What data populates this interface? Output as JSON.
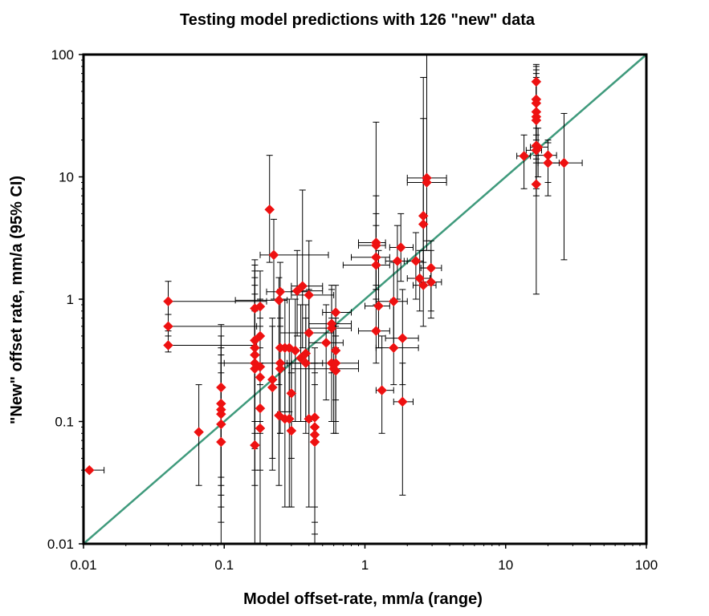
{
  "chart_data": {
    "type": "scatter",
    "title": "Testing model predictions with 126 \"new\" data",
    "xlabel": "Model offset-rate, mm/a (range)",
    "ylabel": "\"New\" offset rate, mm/a (95% CI)",
    "xscale": "log",
    "yscale": "log",
    "xlim": [
      0.01,
      100
    ],
    "ylim": [
      0.01,
      100
    ],
    "x_ticks": [
      0.01,
      0.1,
      1,
      10,
      100
    ],
    "x_tick_labels": [
      "0.01",
      "0.1",
      "1",
      "10",
      "100"
    ],
    "y_ticks": [
      0.01,
      0.1,
      1,
      10,
      100
    ],
    "y_tick_labels": [
      "0.01",
      "0.1",
      "1",
      "10",
      "100"
    ],
    "grid": false,
    "legend": "none",
    "reference_line": {
      "type": "1:1",
      "from": [
        0.01,
        0.01
      ],
      "to": [
        100,
        100
      ],
      "color": "#3f9a7c"
    },
    "marker": {
      "shape": "diamond",
      "color": "#ee1111"
    },
    "errorbar_color": "#000000",
    "frame_color": "#000000",
    "points": [
      {
        "x": 0.04,
        "y": 0.96,
        "xlo": 0.04,
        "xhi": 0.2,
        "ylo": 0.6,
        "yhi": 1.4
      },
      {
        "x": 0.04,
        "y": 0.6,
        "xlo": 0.04,
        "xhi": 0.17,
        "ylo": 0.5,
        "yhi": 0.75
      },
      {
        "x": 0.04,
        "y": 0.42,
        "xlo": 0.04,
        "xhi": 0.17,
        "ylo": 0.37,
        "yhi": 0.55
      },
      {
        "x": 0.066,
        "y": 0.082,
        "ylo": 0.03,
        "yhi": 0.2
      },
      {
        "x": 0.095,
        "y": 0.19,
        "ylo": 0.035,
        "yhi": 0.62
      },
      {
        "x": 0.095,
        "y": 0.14,
        "ylo": 0.03,
        "yhi": 0.5
      },
      {
        "x": 0.095,
        "y": 0.125,
        "ylo": 0.025,
        "yhi": 0.4
      },
      {
        "x": 0.095,
        "y": 0.115,
        "ylo": 0.02,
        "yhi": 0.35
      },
      {
        "x": 0.095,
        "y": 0.095,
        "ylo": 0.015,
        "yhi": 0.3
      },
      {
        "x": 0.095,
        "y": 0.068,
        "ylo": 0.01,
        "yhi": 0.25
      },
      {
        "x": 0.011,
        "y": 0.04,
        "xlo": 0.01,
        "xhi": 0.014
      },
      {
        "x": 0.165,
        "y": 0.84,
        "ylo": 0.3,
        "yhi": 2.1
      },
      {
        "x": 0.165,
        "y": 0.46,
        "ylo": 0.1,
        "yhi": 1.9
      },
      {
        "x": 0.165,
        "y": 0.4,
        "ylo": 0.08,
        "yhi": 1.7
      },
      {
        "x": 0.165,
        "y": 0.35,
        "ylo": 0.06,
        "yhi": 1.5
      },
      {
        "x": 0.165,
        "y": 0.3,
        "ylo": 0.04,
        "yhi": 1.3
      },
      {
        "x": 0.165,
        "y": 0.27,
        "ylo": 0.03,
        "yhi": 1.1
      },
      {
        "x": 0.165,
        "y": 0.064,
        "ylo": 0.01,
        "yhi": 0.8
      },
      {
        "x": 0.18,
        "y": 0.87,
        "ylo": 0.3,
        "yhi": 1.7
      },
      {
        "x": 0.18,
        "y": 0.5,
        "ylo": 0.2,
        "yhi": 1.0
      },
      {
        "x": 0.18,
        "y": 0.28,
        "ylo": 0.1,
        "yhi": 0.7
      },
      {
        "x": 0.18,
        "y": 0.23,
        "ylo": 0.08,
        "yhi": 0.6
      },
      {
        "x": 0.18,
        "y": 0.128,
        "ylo": 0.04,
        "yhi": 0.4
      },
      {
        "x": 0.18,
        "y": 0.088,
        "ylo": 0.01,
        "yhi": 0.3
      },
      {
        "x": 0.21,
        "y": 5.4,
        "ylo": 2.0,
        "yhi": 15
      },
      {
        "x": 0.225,
        "y": 2.3,
        "xlo": 0.18,
        "xhi": 0.55,
        "ylo": 1.0,
        "yhi": 4.5
      },
      {
        "x": 0.22,
        "y": 0.22,
        "ylo": 0.05,
        "yhi": 0.7
      },
      {
        "x": 0.22,
        "y": 0.19,
        "ylo": 0.04,
        "yhi": 0.6
      },
      {
        "x": 0.245,
        "y": 0.98,
        "xlo": 0.12,
        "xhi": 0.28,
        "ylo": 0.2,
        "yhi": 1.5
      },
      {
        "x": 0.25,
        "y": 1.15,
        "xlo": 0.2,
        "xhi": 0.4,
        "ylo": 0.4,
        "yhi": 2.0
      },
      {
        "x": 0.25,
        "y": 0.4,
        "ylo": 0.12,
        "yhi": 1.2
      },
      {
        "x": 0.25,
        "y": 0.3,
        "xlo": 0.1,
        "xhi": 0.3,
        "ylo": 0.08,
        "yhi": 0.7
      },
      {
        "x": 0.25,
        "y": 0.27,
        "ylo": 0.08,
        "yhi": 0.6
      },
      {
        "x": 0.245,
        "y": 0.112,
        "ylo": 0.03,
        "yhi": 0.3
      },
      {
        "x": 0.27,
        "y": 0.4,
        "ylo": 0.12,
        "yhi": 1.0
      },
      {
        "x": 0.27,
        "y": 0.105,
        "ylo": 0.02,
        "yhi": 0.3
      },
      {
        "x": 0.29,
        "y": 0.4,
        "ylo": 0.12,
        "yhi": 1.0
      },
      {
        "x": 0.29,
        "y": 0.105,
        "ylo": 0.02,
        "yhi": 0.3
      },
      {
        "x": 0.3,
        "y": 0.17,
        "ylo": 0.05,
        "yhi": 0.4
      },
      {
        "x": 0.3,
        "y": 0.084,
        "ylo": 0.02,
        "yhi": 0.25
      },
      {
        "x": 0.32,
        "y": 0.38,
        "ylo": 0.1,
        "yhi": 1.0
      },
      {
        "x": 0.33,
        "y": 1.17,
        "xlo": 0.3,
        "xhi": 0.5,
        "ylo": 0.5,
        "yhi": 2.5
      },
      {
        "x": 0.36,
        "y": 1.28,
        "xlo": 0.3,
        "xhi": 0.5,
        "ylo": 0.4,
        "yhi": 7.8
      },
      {
        "x": 0.35,
        "y": 0.33,
        "ylo": 0.1,
        "yhi": 0.9
      },
      {
        "x": 0.38,
        "y": 0.36,
        "ylo": 0.1,
        "yhi": 0.9
      },
      {
        "x": 0.38,
        "y": 0.3,
        "xlo": 0.28,
        "xhi": 0.5,
        "ylo": 0.08,
        "yhi": 0.7
      },
      {
        "x": 0.4,
        "y": 1.08,
        "xlo": 0.3,
        "xhi": 0.6,
        "ylo": 0.3,
        "yhi": 3.0
      },
      {
        "x": 0.4,
        "y": 0.53,
        "xlo": 0.25,
        "xhi": 0.6,
        "ylo": 0.1,
        "yhi": 1.2
      },
      {
        "x": 0.4,
        "y": 0.105,
        "ylo": 0.02,
        "yhi": 0.3
      },
      {
        "x": 0.44,
        "y": 0.108,
        "ylo": 0.02,
        "yhi": 0.4
      },
      {
        "x": 0.44,
        "y": 0.09,
        "ylo": 0.015,
        "yhi": 0.3
      },
      {
        "x": 0.44,
        "y": 0.078,
        "ylo": 0.012,
        "yhi": 0.25
      },
      {
        "x": 0.44,
        "y": 0.068,
        "ylo": 0.01,
        "yhi": 0.2
      },
      {
        "x": 0.53,
        "y": 0.44,
        "xlo": 0.4,
        "xhi": 0.7,
        "ylo": 0.15,
        "yhi": 0.9
      },
      {
        "x": 0.58,
        "y": 0.63,
        "xlo": 0.4,
        "xhi": 0.8,
        "ylo": 0.3,
        "yhi": 1.3
      },
      {
        "x": 0.58,
        "y": 0.58,
        "xlo": 0.4,
        "xhi": 0.8,
        "ylo": 0.25,
        "yhi": 1.2
      },
      {
        "x": 0.58,
        "y": 0.3,
        "xlo": 0.3,
        "xhi": 0.9,
        "ylo": 0.1,
        "yhi": 0.7
      },
      {
        "x": 0.6,
        "y": 0.27,
        "xlo": 0.3,
        "xhi": 0.9,
        "ylo": 0.08,
        "yhi": 0.6
      },
      {
        "x": 0.62,
        "y": 0.78,
        "xlo": 0.5,
        "xhi": 0.8,
        "ylo": 0.4,
        "yhi": 1.3
      },
      {
        "x": 0.62,
        "y": 0.38,
        "ylo": 0.15,
        "yhi": 0.7
      },
      {
        "x": 0.62,
        "y": 0.3,
        "ylo": 0.1,
        "yhi": 0.6
      },
      {
        "x": 0.62,
        "y": 0.26,
        "ylo": 0.08,
        "yhi": 0.5
      },
      {
        "x": 1.2,
        "y": 2.9,
        "xlo": 0.9,
        "xhi": 1.4,
        "ylo": 1.2,
        "yhi": 28
      },
      {
        "x": 1.2,
        "y": 2.75,
        "xlo": 0.9,
        "xhi": 1.4,
        "ylo": 1.2,
        "yhi": 7
      },
      {
        "x": 1.2,
        "y": 2.2,
        "xlo": 0.8,
        "xhi": 1.5,
        "ylo": 1.0,
        "yhi": 5
      },
      {
        "x": 1.2,
        "y": 1.9,
        "xlo": 0.7,
        "xhi": 1.5,
        "ylo": 0.9,
        "yhi": 4
      },
      {
        "x": 1.25,
        "y": 0.88,
        "xlo": 1.0,
        "xhi": 1.5,
        "ylo": 0.4,
        "yhi": 2.5
      },
      {
        "x": 1.2,
        "y": 0.55,
        "xlo": 0.9,
        "xhi": 1.5,
        "ylo": 0.3,
        "yhi": 1.3
      },
      {
        "x": 1.32,
        "y": 0.18,
        "xlo": 1.2,
        "xhi": 1.6,
        "ylo": 0.08,
        "yhi": 0.5
      },
      {
        "x": 1.6,
        "y": 0.96,
        "xlo": 1.2,
        "xhi": 2.0,
        "ylo": 0.4,
        "yhi": 2.0
      },
      {
        "x": 1.6,
        "y": 0.4,
        "xlo": 1.2,
        "xhi": 2.4,
        "ylo": 0.2,
        "yhi": 1.0
      },
      {
        "x": 1.7,
        "y": 2.05,
        "xlo": 1.4,
        "xhi": 2.0,
        "ylo": 1.0,
        "yhi": 4.0
      },
      {
        "x": 1.8,
        "y": 2.65,
        "xlo": 1.5,
        "xhi": 2.2,
        "ylo": 1.4,
        "yhi": 5.0
      },
      {
        "x": 1.85,
        "y": 0.48,
        "xlo": 1.4,
        "xhi": 2.4,
        "ylo": 0.2,
        "yhi": 1.2
      },
      {
        "x": 1.85,
        "y": 0.145,
        "xlo": 1.6,
        "xhi": 2.2,
        "ylo": 0.025,
        "yhi": 0.3
      },
      {
        "x": 2.3,
        "y": 2.05,
        "xlo": 1.9,
        "xhi": 2.6,
        "ylo": 1.0,
        "yhi": 3.5
      },
      {
        "x": 2.45,
        "y": 1.48,
        "xlo": 2.0,
        "xhi": 2.9,
        "ylo": 0.8,
        "yhi": 2.5
      },
      {
        "x": 2.6,
        "y": 4.8,
        "ylo": 2.0,
        "yhi": 65
      },
      {
        "x": 2.6,
        "y": 4.1,
        "ylo": 1.8,
        "yhi": 30
      },
      {
        "x": 2.6,
        "y": 1.3,
        "xlo": 2.2,
        "xhi": 3.2,
        "ylo": 0.6,
        "yhi": 2.5
      },
      {
        "x": 2.75,
        "y": 9.8,
        "xlo": 2.0,
        "xhi": 3.8,
        "ylo": 3.0,
        "yhi": 107
      },
      {
        "x": 2.75,
        "y": 9.0,
        "xlo": 2.0,
        "xhi": 3.8,
        "ylo": 2.5,
        "yhi": 100
      },
      {
        "x": 2.95,
        "y": 1.8,
        "xlo": 2.5,
        "xhi": 3.5,
        "ylo": 0.8,
        "yhi": 3.0
      },
      {
        "x": 2.95,
        "y": 1.38,
        "xlo": 2.5,
        "xhi": 3.5,
        "ylo": 0.7,
        "yhi": 2.5
      },
      {
        "x": 13.5,
        "y": 14.8,
        "xlo": 12,
        "xhi": 15,
        "ylo": 8,
        "yhi": 22
      },
      {
        "x": 16.5,
        "y": 60,
        "ylo": 30,
        "yhi": 83
      },
      {
        "x": 16.5,
        "y": 43,
        "ylo": 20,
        "yhi": 80
      },
      {
        "x": 16.5,
        "y": 40,
        "ylo": 18,
        "yhi": 75
      },
      {
        "x": 16.5,
        "y": 34,
        "ylo": 15,
        "yhi": 70
      },
      {
        "x": 16.5,
        "y": 31,
        "ylo": 14,
        "yhi": 65
      },
      {
        "x": 16.5,
        "y": 29,
        "ylo": 13,
        "yhi": 60
      },
      {
        "x": 16.5,
        "y": 18,
        "ylo": 8,
        "yhi": 25
      },
      {
        "x": 16.5,
        "y": 16.5,
        "xlo": 14,
        "xhi": 18,
        "ylo": 7,
        "yhi": 22
      },
      {
        "x": 16.5,
        "y": 8.7,
        "ylo": 1.1,
        "yhi": 17
      },
      {
        "x": 17,
        "y": 17.5,
        "xlo": 15,
        "xhi": 20,
        "ylo": 10,
        "yhi": 25
      },
      {
        "x": 20,
        "y": 15,
        "xlo": 17,
        "xhi": 23,
        "ylo": 9,
        "yhi": 20
      },
      {
        "x": 20,
        "y": 13,
        "xlo": 17,
        "xhi": 24,
        "ylo": 7,
        "yhi": 19
      },
      {
        "x": 26,
        "y": 13,
        "xlo": 20,
        "xhi": 35,
        "ylo": 2.1,
        "yhi": 33
      }
    ]
  }
}
